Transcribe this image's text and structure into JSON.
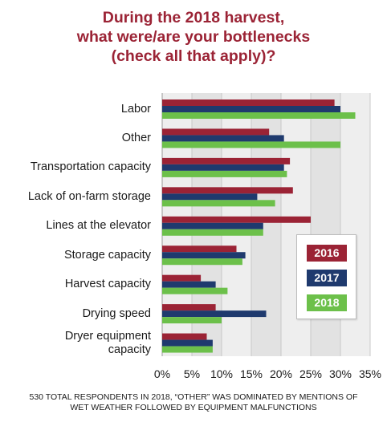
{
  "chart_data": {
    "type": "bar",
    "orientation": "horizontal",
    "title": [
      "During the 2018 harvest,",
      "what were/are your bottlenecks",
      "(check all that apply)?"
    ],
    "categories": [
      [
        "Labor"
      ],
      [
        "Other"
      ],
      [
        "Transportation capacity"
      ],
      [
        "Lack of on-farm storage"
      ],
      [
        "Lines at the elevator"
      ],
      [
        "Storage capacity"
      ],
      [
        "Harvest capacity"
      ],
      [
        "Drying speed"
      ],
      [
        "Dryer equipment",
        "capacity"
      ]
    ],
    "series": [
      {
        "name": "2016",
        "color": "#9b2335",
        "values": [
          29,
          18,
          21.5,
          22,
          25,
          12.5,
          6.5,
          9,
          7.5
        ]
      },
      {
        "name": "2017",
        "color": "#1f3a6e",
        "values": [
          30,
          20.5,
          20.5,
          16,
          17,
          14,
          9,
          17.5,
          8.5
        ]
      },
      {
        "name": "2018",
        "color": "#6cc04a",
        "values": [
          32.5,
          30,
          21,
          19,
          17,
          13.5,
          11,
          10,
          8.5
        ]
      }
    ],
    "xlim": [
      0,
      35
    ],
    "xticks": [
      "0%",
      "5%",
      "10%",
      "15%",
      "20%",
      "25%",
      "30%",
      "35%"
    ],
    "grid": true,
    "legend": "lower-right",
    "footnote": [
      "530 TOTAL RESPONDENTS IN 2018, “OTHER” WAS DOMINATED BY MENTIONS OF",
      "WET WEATHER FOLLOWED BY EQUIPMENT MALFUNCTIONS"
    ]
  }
}
